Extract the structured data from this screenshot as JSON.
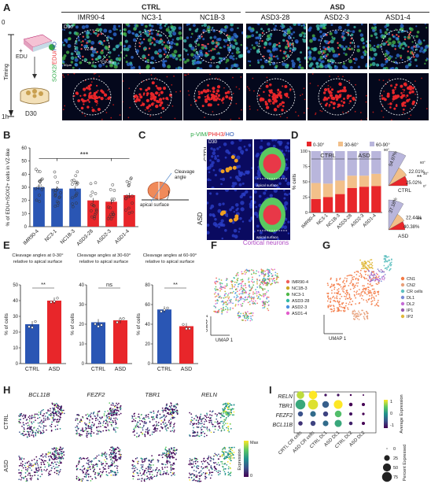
{
  "panel_labels": [
    "A",
    "B",
    "C",
    "D",
    "E",
    "F",
    "G",
    "H",
    "I"
  ],
  "panelA": {
    "group_ctrl": "CTRL",
    "group_asd": "ASD",
    "lines": [
      "IMR90-4",
      "NC3-1",
      "NC1B-3",
      "ASD3-28",
      "ASD2-3",
      "ASD1-4"
    ],
    "day_label": "D30",
    "scale": "50μm",
    "region_vz": "VZ-like",
    "region_cp": "CP-like",
    "stain_sox2": "SOX2/",
    "stain_edu": "EDU/",
    "stain_ho": "HO",
    "timing": "Timing",
    "t0": "0",
    "t1": "1h",
    "edu_plus": "+",
    "edu": "EDU",
    "d30": "D30"
  },
  "panelB": {
    "ylabel": "% of EDU+/SOX2+ cells in VZ-like",
    "sig": "***",
    "chart_data": {
      "type": "bar",
      "categories": [
        "IMR90-4",
        "NC3-1",
        "NC1B-3",
        "ASD3-28",
        "ASD2-3",
        "ASD1-4"
      ],
      "values": [
        30,
        29,
        29,
        20,
        19,
        24
      ],
      "ylim": [
        0,
        60
      ],
      "yticks": [
        0,
        10,
        20,
        30,
        40,
        50,
        60
      ],
      "colors": [
        "#2a56b4",
        "#2a56b4",
        "#2a56b4",
        "#e8262a",
        "#e8262a",
        "#e8262a"
      ]
    }
  },
  "panelC": {
    "title_pvim": "p-VIM/",
    "title_phh3": "PHH3/",
    "title_ho": "HO",
    "day": "D30",
    "ctrl": "CTRL",
    "asd": "ASD",
    "cleavage": "Cleavage angle",
    "apical": "apical surface",
    "cleavage_plane": "cleavage plane",
    "scale": "20μm"
  },
  "panelD": {
    "ylabel": "% cells",
    "legend": [
      "0-30°",
      "30-60°",
      "60-90°"
    ],
    "ctrl": "CTRL",
    "asd": "ASD",
    "sig": "**",
    "chart_data": {
      "type": "bar",
      "categories": [
        "IMR90-4",
        "NC3-1",
        "NC1B-3",
        "ASD3-28",
        "ASD2-3",
        "ASD1-4"
      ],
      "series": [
        {
          "name": "0-30°",
          "values": [
            22,
            25,
            30,
            40,
            42,
            43
          ]
        },
        {
          "name": "30-60°",
          "values": [
            26,
            22,
            22,
            20,
            18,
            20
          ]
        },
        {
          "name": "60-90°",
          "values": [
            52,
            53,
            48,
            40,
            40,
            37
          ]
        }
      ],
      "ylim": [
        0,
        100
      ],
      "yticks": [
        0,
        25,
        50,
        75,
        100
      ],
      "colors": [
        "#e8262a",
        "#f2c08a",
        "#b9b6dc"
      ]
    },
    "fan_ctrl": {
      "label": "CTRL",
      "values": [
        "54.97%",
        "22.01%",
        "25.02%"
      ]
    },
    "fan_asd": {
      "label": "ASD",
      "values": [
        "37.18%",
        "22.44%",
        "40.38%"
      ]
    },
    "angles": [
      "90°",
      "60°",
      "30°",
      "0°"
    ]
  },
  "panelE": {
    "ylabel": "% of cells",
    "charts": [
      {
        "title": "Cleavage angles at 0-30° relative to apical surface",
        "sig": "**",
        "ylim": [
          0,
          50
        ],
        "yticks": [
          0,
          10,
          20,
          30,
          40,
          50
        ],
        "categories": [
          "CTRL",
          "ASD"
        ],
        "values": [
          25,
          40
        ]
      },
      {
        "title": "Cleavage angles at 30-60° relative to apical surface",
        "sig": "ns",
        "ylim": [
          0,
          40
        ],
        "yticks": [
          0,
          10,
          20,
          30,
          40
        ],
        "categories": [
          "CTRL",
          "ASD"
        ],
        "values": [
          21,
          22
        ]
      },
      {
        "title": "Cleavage angles at 60-90° relative to apical surface",
        "sig": "**",
        "ylim": [
          0,
          80
        ],
        "yticks": [
          0,
          20,
          40,
          60,
          80
        ],
        "categories": [
          "CTRL",
          "ASD"
        ],
        "values": [
          55,
          38
        ]
      }
    ],
    "colors": {
      "ctrl": "#2a56b4",
      "asd": "#e8262a"
    }
  },
  "panelF": {
    "title": "Cortical neurons",
    "umap1": "UMAP 1",
    "umap2": "UMAP 2",
    "legend": [
      {
        "name": "IMR90-4",
        "color": "#f0605a"
      },
      {
        "name": "NC1B-3",
        "color": "#c9a622"
      },
      {
        "name": "NC3-1",
        "color": "#4fb848"
      },
      {
        "name": "ASD3-28",
        "color": "#31b8a3"
      },
      {
        "name": "ASD2-3",
        "color": "#4a8fe0"
      },
      {
        "name": "ASD1-4",
        "color": "#e25ccc"
      }
    ]
  },
  "panelG": {
    "umap1": "UMAP 1",
    "umap2": "UMAP 2",
    "legend": [
      {
        "name": "CN1",
        "color": "#f47a45"
      },
      {
        "name": "CN2",
        "color": "#e8a07a"
      },
      {
        "name": "CR cells",
        "color": "#5ec0c0"
      },
      {
        "name": "DL1",
        "color": "#7a8ad6"
      },
      {
        "name": "DL2",
        "color": "#c56cd6"
      },
      {
        "name": "IP1",
        "color": "#9a5ab0"
      },
      {
        "name": "IP2",
        "color": "#e0b83a"
      }
    ]
  },
  "panelH": {
    "genes": [
      "BCL11B",
      "FEZF2",
      "TBR1",
      "RELN"
    ],
    "rows": [
      "CTRL",
      "ASD"
    ],
    "colorbar_label": "Expression",
    "max": "Max",
    "min": "0"
  },
  "panelI": {
    "genes": [
      "RELN",
      "TBR1",
      "FEZF2",
      "BCL11B"
    ],
    "columns": [
      "CRTL CR cells",
      "ASD CR cells",
      "CTRL DL1",
      "ASD DL1",
      "CTRL DL2",
      "ASD DL2"
    ],
    "avg_label": "Average Expression",
    "avg_ticks": [
      "1",
      "0",
      "-1"
    ],
    "pct_label": "Percent Expressed",
    "pct_ticks": [
      "0",
      "25",
      "50",
      "75"
    ],
    "chart_data": {
      "type": "dotplot",
      "genes": [
        "RELN",
        "TBR1",
        "FEZF2",
        "BCL11B"
      ],
      "columns": [
        "CRTL CR cells",
        "ASD CR cells",
        "CTRL DL1",
        "ASD DL1",
        "CTRL DL2",
        "ASD DL2"
      ],
      "avg_expression": [
        [
          0.8,
          1.0,
          -0.9,
          -0.9,
          -1.0,
          -1.0
        ],
        [
          0.2,
          0.9,
          -0.4,
          1.0,
          -1.0,
          -1.0
        ],
        [
          -0.5,
          -0.3,
          -0.6,
          0.4,
          -0.9,
          -1.0
        ],
        [
          -0.7,
          -0.6,
          -0.3,
          0.2,
          -0.8,
          -1.0
        ]
      ],
      "percent_expressed": [
        [
          45,
          55,
          5,
          5,
          3,
          2
        ],
        [
          75,
          78,
          35,
          60,
          10,
          8
        ],
        [
          20,
          25,
          20,
          35,
          8,
          5
        ],
        [
          15,
          20,
          25,
          40,
          10,
          8
        ]
      ]
    }
  }
}
